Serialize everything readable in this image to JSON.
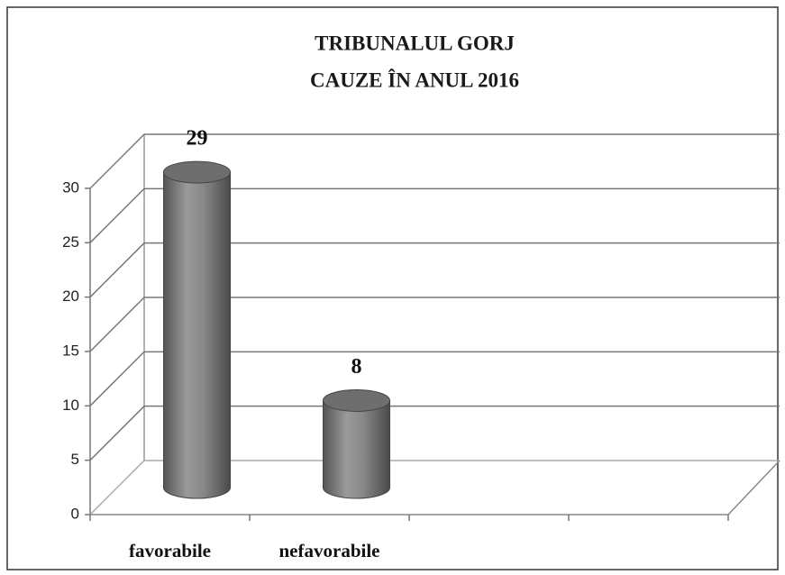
{
  "chart_data": {
    "type": "bar",
    "title": "TRIBUNALUL GORJ",
    "subtitle": "CAUZE ÎN ANUL 2016",
    "categories": [
      "favorabile",
      "nefavorabile",
      null,
      null
    ],
    "values": [
      29,
      8,
      null,
      null
    ],
    "color": "#7a7a7a",
    "ylim": [
      0,
      30
    ],
    "yticks": [
      0,
      5,
      10,
      15,
      20,
      25,
      30
    ],
    "grid": true
  }
}
